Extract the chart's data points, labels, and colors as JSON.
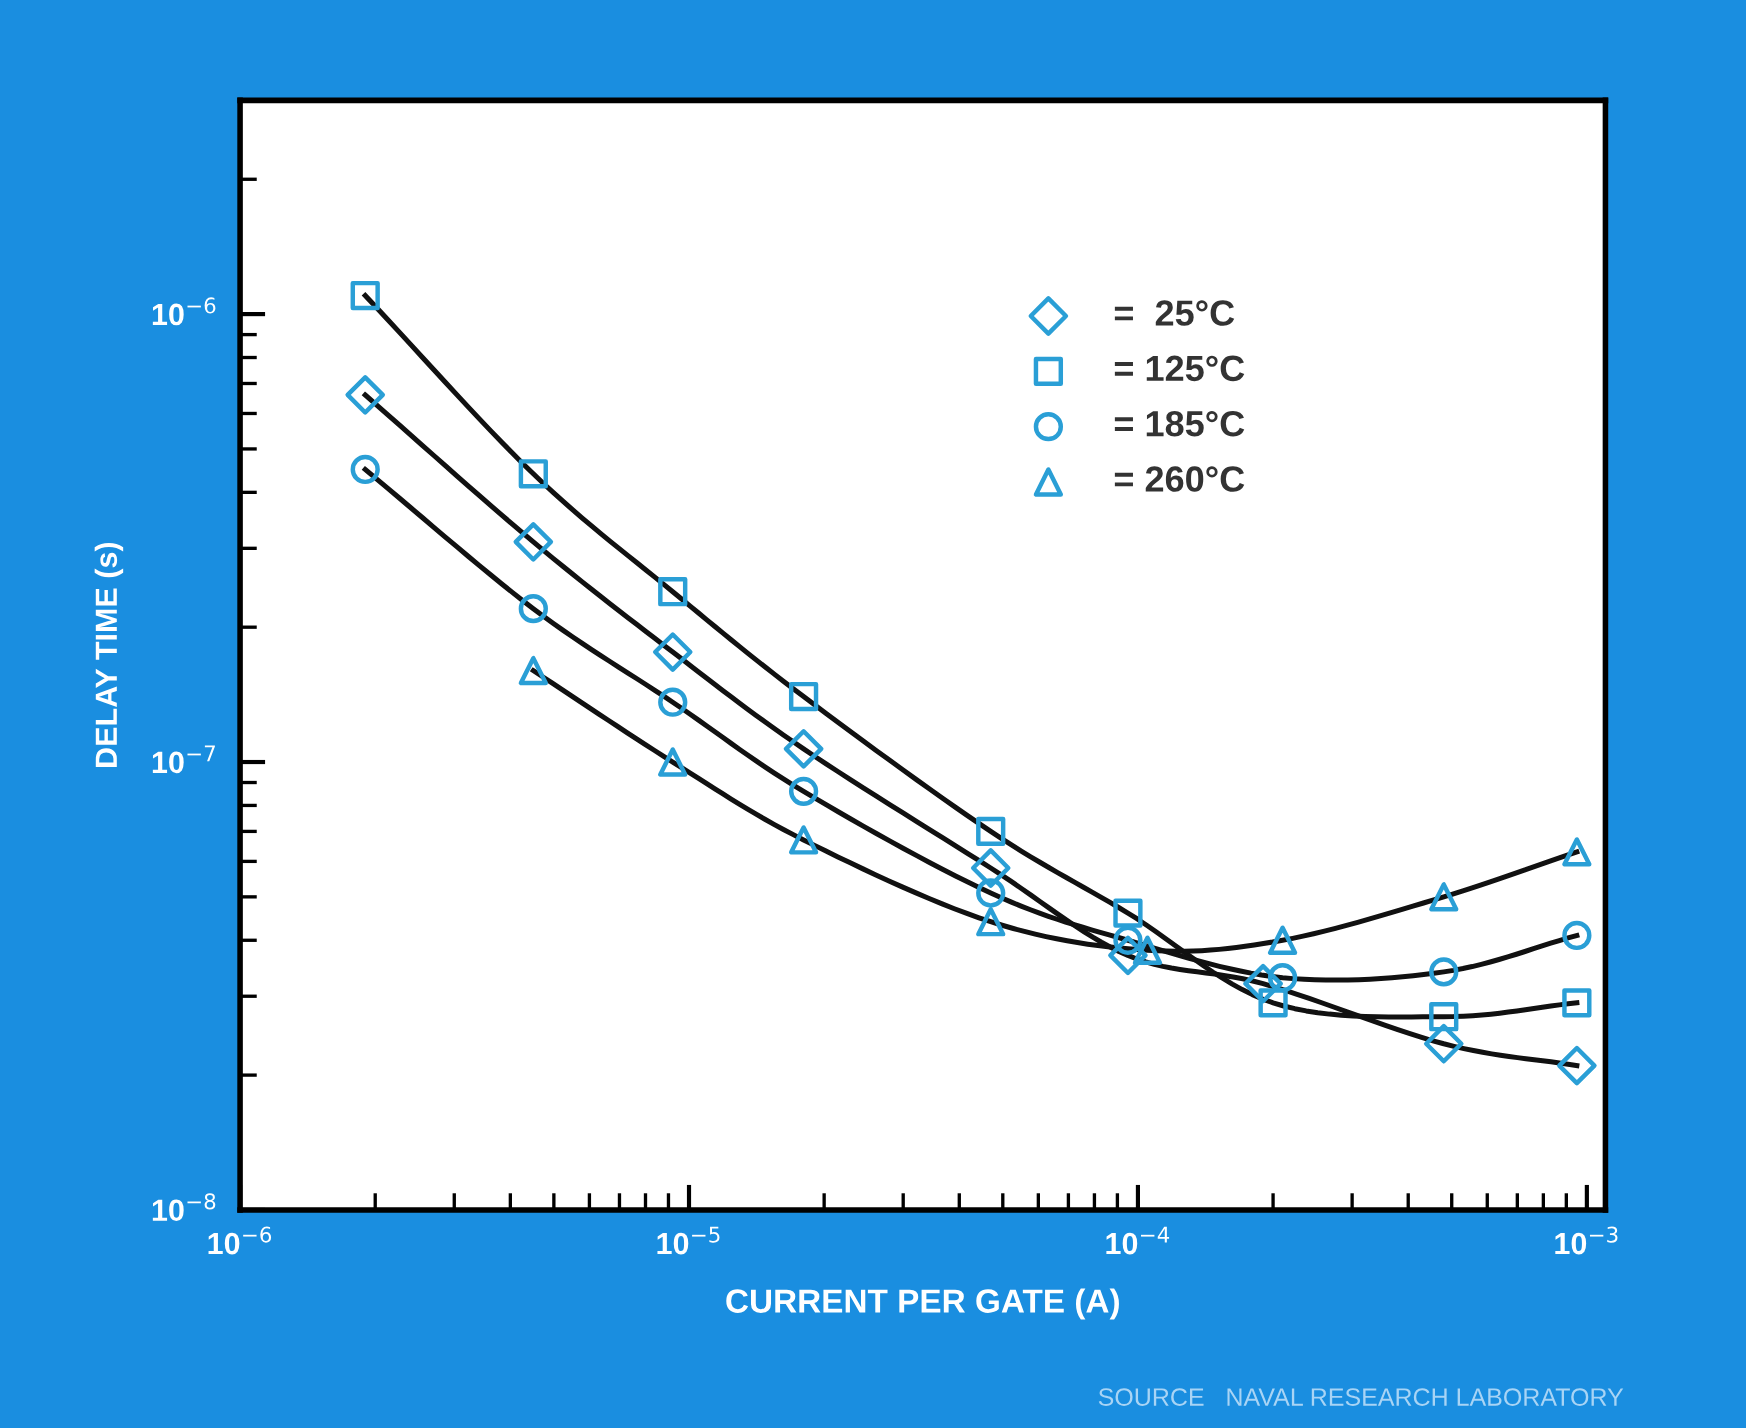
{
  "chart_data": {
    "type": "scatter",
    "xlabel": "CURRENT PER GATE (A)",
    "ylabel": "DELAY TIME (s)",
    "log": "xy",
    "xlim": [
      1e-06,
      0.0011
    ],
    "ylim": [
      1e-08,
      3e-06
    ],
    "xticks": [
      {
        "value": 1e-06,
        "label": "10$^{−6}$"
      },
      {
        "value": 1e-05,
        "label": "10$^{−5}$"
      },
      {
        "value": 0.0001,
        "label": "10$^{−4}$"
      },
      {
        "value": 0.001,
        "label": "10$^{−3}$"
      }
    ],
    "yticks": [
      {
        "value": 1e-08,
        "label": "10$^{−8}$"
      },
      {
        "value": 1e-07,
        "label": "10$^{−7}$"
      },
      {
        "value": 1e-06,
        "label": "10$^{−6}$"
      }
    ],
    "grid": false,
    "legend": "top right",
    "annotations": [
      "SOURCE   NAVAL RESEARCH LABORATORY"
    ],
    "series": [
      {
        "name": "=  25°C",
        "color": "#2a9fd6",
        "marker": "diamond",
        "x": [
          1.9e-06,
          4.5e-06,
          9.2e-06,
          1.8e-05,
          4.7e-05,
          9.5e-05,
          0.00019,
          0.00048,
          0.00095
        ],
        "values": [
          6.6e-07,
          3.1e-07,
          1.76e-07,
          1.07e-07,
          5.8e-08,
          3.7e-08,
          3.2e-08,
          2.35e-08,
          2.1e-08
        ]
      },
      {
        "name": "= 125°C",
        "color": "#2a9fd6",
        "marker": "square",
        "x": [
          1.9e-06,
          4.5e-06,
          9.2e-06,
          1.8e-05,
          4.7e-05,
          9.5e-05,
          0.0002,
          0.00048,
          0.00095
        ],
        "values": [
          1.1e-06,
          4.4e-07,
          2.4e-07,
          1.4e-07,
          7e-08,
          4.6e-08,
          2.9e-08,
          2.7e-08,
          2.9e-08
        ]
      },
      {
        "name": "= 185°C",
        "color": "#2a9fd6",
        "marker": "circle",
        "x": [
          1.9e-06,
          4.5e-06,
          9.2e-06,
          1.8e-05,
          4.7e-05,
          9.5e-05,
          0.00021,
          0.00048,
          0.00095
        ],
        "values": [
          4.5e-07,
          2.2e-07,
          1.36e-07,
          8.6e-08,
          5.1e-08,
          4e-08,
          3.3e-08,
          3.4e-08,
          4.1e-08
        ]
      },
      {
        "name": "= 260°C",
        "color": "#2a9fd6",
        "marker": "triangle",
        "x": [
          4.5e-06,
          9.2e-06,
          1.8e-05,
          4.7e-05,
          0.000105,
          0.00021,
          0.00048,
          0.00095
        ],
        "values": [
          1.6e-07,
          1e-07,
          6.7e-08,
          4.4e-08,
          3.8e-08,
          4e-08,
          5e-08,
          6.3e-08
        ]
      },
      {
        "type": "line",
        "color": "#111111",
        "marker": "none",
        "x": [
          1.9e-06,
          4.5e-06,
          9.2e-06,
          1.8e-05,
          4.7e-05,
          9.5e-05,
          0.00019,
          0.00048,
          0.00095
        ],
        "values": [
          6.6e-07,
          3.1e-07,
          1.76e-07,
          1.07e-07,
          5.8e-08,
          3.7e-08,
          3.2e-08,
          2.35e-08,
          2.1e-08
        ]
      },
      {
        "type": "line",
        "color": "#111111",
        "marker": "none",
        "x": [
          1.9e-06,
          4.5e-06,
          9.2e-06,
          1.8e-05,
          4.7e-05,
          9.5e-05,
          0.0002,
          0.00048,
          0.00095
        ],
        "values": [
          1.1e-06,
          4.4e-07,
          2.4e-07,
          1.4e-07,
          7e-08,
          4.6e-08,
          2.9e-08,
          2.7e-08,
          2.9e-08
        ]
      },
      {
        "type": "line",
        "color": "#111111",
        "marker": "none",
        "x": [
          1.9e-06,
          4.5e-06,
          9.2e-06,
          1.8e-05,
          4.7e-05,
          9.5e-05,
          0.00021,
          0.00048,
          0.00095
        ],
        "values": [
          4.5e-07,
          2.2e-07,
          1.36e-07,
          8.6e-08,
          5.1e-08,
          4e-08,
          3.3e-08,
          3.4e-08,
          4.1e-08
        ]
      },
      {
        "type": "line",
        "color": "#111111",
        "marker": "none",
        "x": [
          4.5e-06,
          9.2e-06,
          1.8e-05,
          4.7e-05,
          0.000105,
          0.00021,
          0.00048,
          0.00095
        ],
        "values": [
          1.6e-07,
          1e-07,
          6.7e-08,
          4.4e-08,
          3.8e-08,
          4e-08,
          5e-08,
          6.3e-08
        ]
      }
    ]
  }
}
